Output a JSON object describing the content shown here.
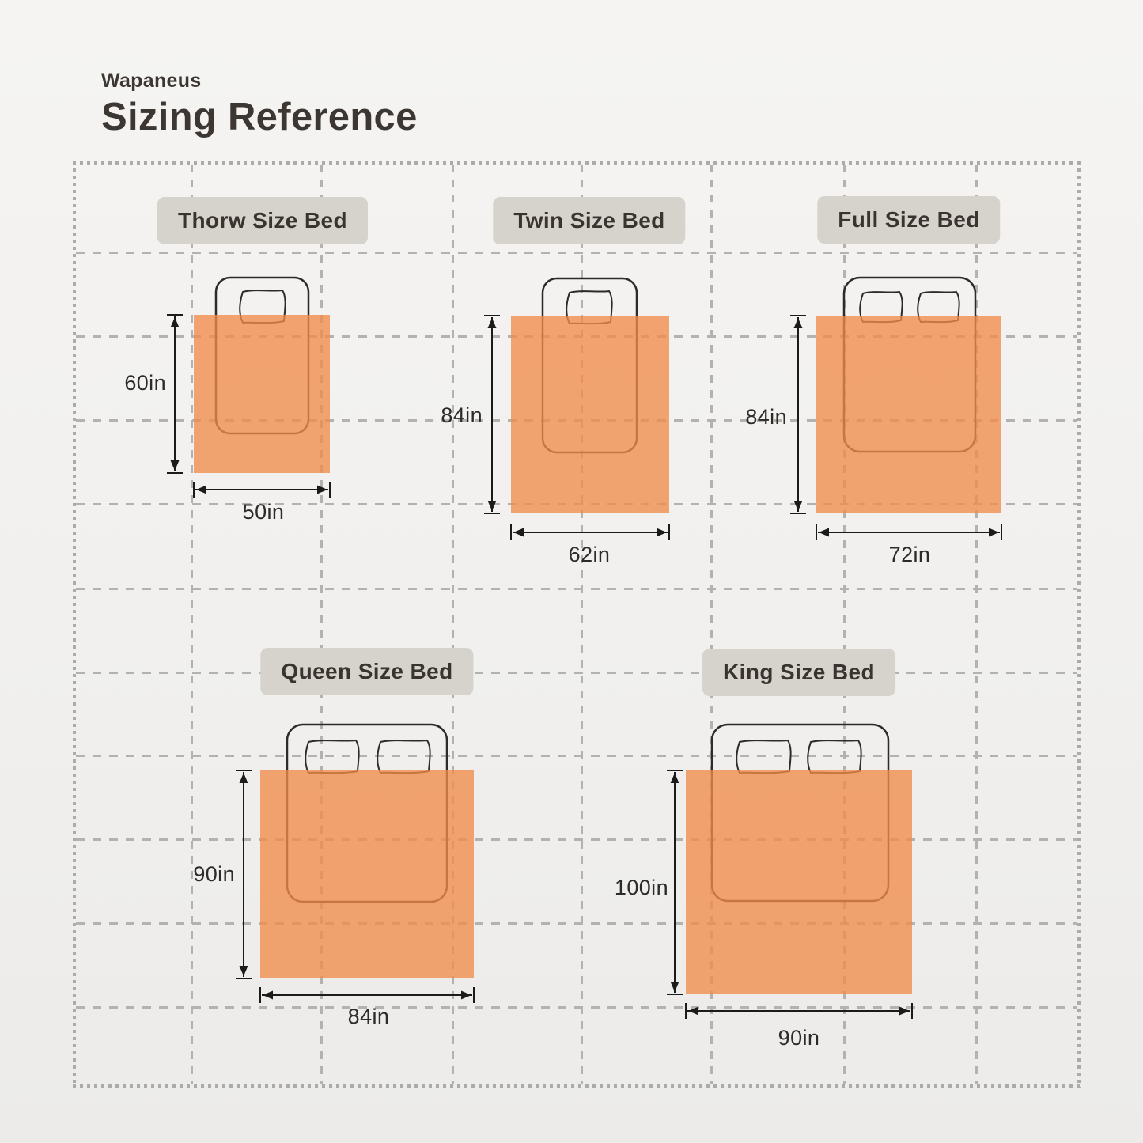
{
  "header": {
    "brand": "Wapaneus",
    "title": "Sizing Reference"
  },
  "beds": [
    {
      "name": "thorw",
      "label": "Thorw Size Bed",
      "height_label": "60in",
      "width_label": "50in",
      "pillows": 1
    },
    {
      "name": "twin",
      "label": "Twin Size Bed",
      "height_label": "84in",
      "width_label": "62in",
      "pillows": 1
    },
    {
      "name": "full",
      "label": "Full Size Bed",
      "height_label": "84in",
      "width_label": "72in",
      "pillows": 2
    },
    {
      "name": "queen",
      "label": "Queen Size Bed",
      "height_label": "90in",
      "width_label": "84in",
      "pillows": 2
    },
    {
      "name": "king",
      "label": "King Size Bed",
      "height_label": "100in",
      "width_label": "90in",
      "pillows": 2
    }
  ],
  "colors": {
    "blanket_orange": "#f08c4a",
    "grid_gray": "#b4b2af",
    "label_pill_bg": "#d6d2cc",
    "text_dark": "#3c3733"
  }
}
